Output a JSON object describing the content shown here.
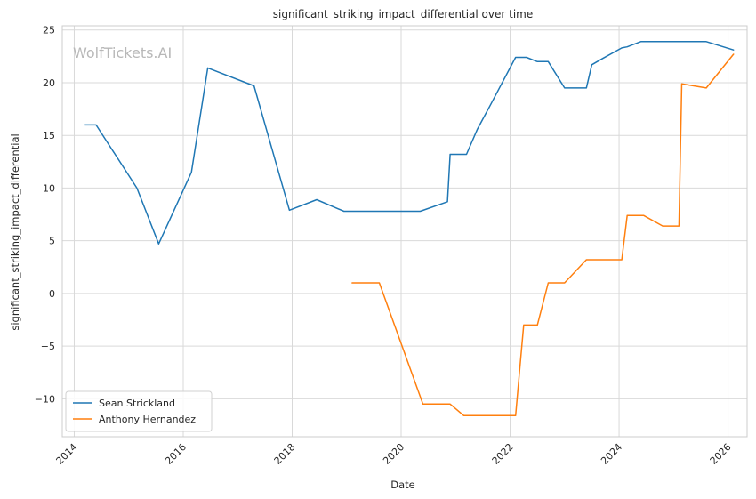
{
  "chart_data": {
    "type": "line",
    "title": "significant_striking_impact_differential over time",
    "xlabel": "Date",
    "ylabel": "significant_striking_impact_differential",
    "watermark": "WolfTickets.AI",
    "xlim": [
      2013.78,
      2026.35
    ],
    "ylim": [
      -13.6,
      25.4
    ],
    "x_ticks": [
      2014,
      2016,
      2018,
      2020,
      2022,
      2024,
      2026
    ],
    "y_ticks": [
      -10,
      -5,
      0,
      5,
      10,
      15,
      20,
      25
    ],
    "grid": true,
    "legend_position": "lower-left",
    "series": [
      {
        "name": "Sean Strickland",
        "color": "#1f77b4",
        "points": [
          [
            2014.2,
            16.0
          ],
          [
            2014.4,
            16.0
          ],
          [
            2015.15,
            10.0
          ],
          [
            2015.55,
            4.7
          ],
          [
            2016.15,
            11.5
          ],
          [
            2016.45,
            21.4
          ],
          [
            2017.3,
            19.7
          ],
          [
            2017.95,
            7.9
          ],
          [
            2018.45,
            8.9
          ],
          [
            2018.95,
            7.8
          ],
          [
            2020.35,
            7.8
          ],
          [
            2020.85,
            8.7
          ],
          [
            2020.9,
            13.2
          ],
          [
            2021.2,
            13.2
          ],
          [
            2021.4,
            15.6
          ],
          [
            2021.65,
            18.0
          ],
          [
            2022.1,
            22.4
          ],
          [
            2022.3,
            22.4
          ],
          [
            2022.5,
            22.0
          ],
          [
            2022.7,
            22.0
          ],
          [
            2023.0,
            19.5
          ],
          [
            2023.4,
            19.5
          ],
          [
            2023.5,
            21.7
          ],
          [
            2023.7,
            22.3
          ],
          [
            2024.05,
            23.3
          ],
          [
            2024.15,
            23.4
          ],
          [
            2024.4,
            23.9
          ],
          [
            2025.6,
            23.9
          ],
          [
            2026.1,
            23.1
          ]
        ]
      },
      {
        "name": "Anthony Hernandez",
        "color": "#ff7f0e",
        "points": [
          [
            2019.1,
            1.0
          ],
          [
            2019.6,
            1.0
          ],
          [
            2020.4,
            -10.5
          ],
          [
            2020.9,
            -10.5
          ],
          [
            2021.15,
            -11.6
          ],
          [
            2022.1,
            -11.6
          ],
          [
            2022.25,
            -3.0
          ],
          [
            2022.5,
            -3.0
          ],
          [
            2022.7,
            1.0
          ],
          [
            2023.0,
            1.0
          ],
          [
            2023.4,
            3.2
          ],
          [
            2024.05,
            3.2
          ],
          [
            2024.15,
            7.4
          ],
          [
            2024.45,
            7.4
          ],
          [
            2024.8,
            6.4
          ],
          [
            2025.1,
            6.4
          ],
          [
            2025.15,
            19.9
          ],
          [
            2025.6,
            19.5
          ],
          [
            2026.1,
            22.7
          ]
        ]
      }
    ]
  }
}
